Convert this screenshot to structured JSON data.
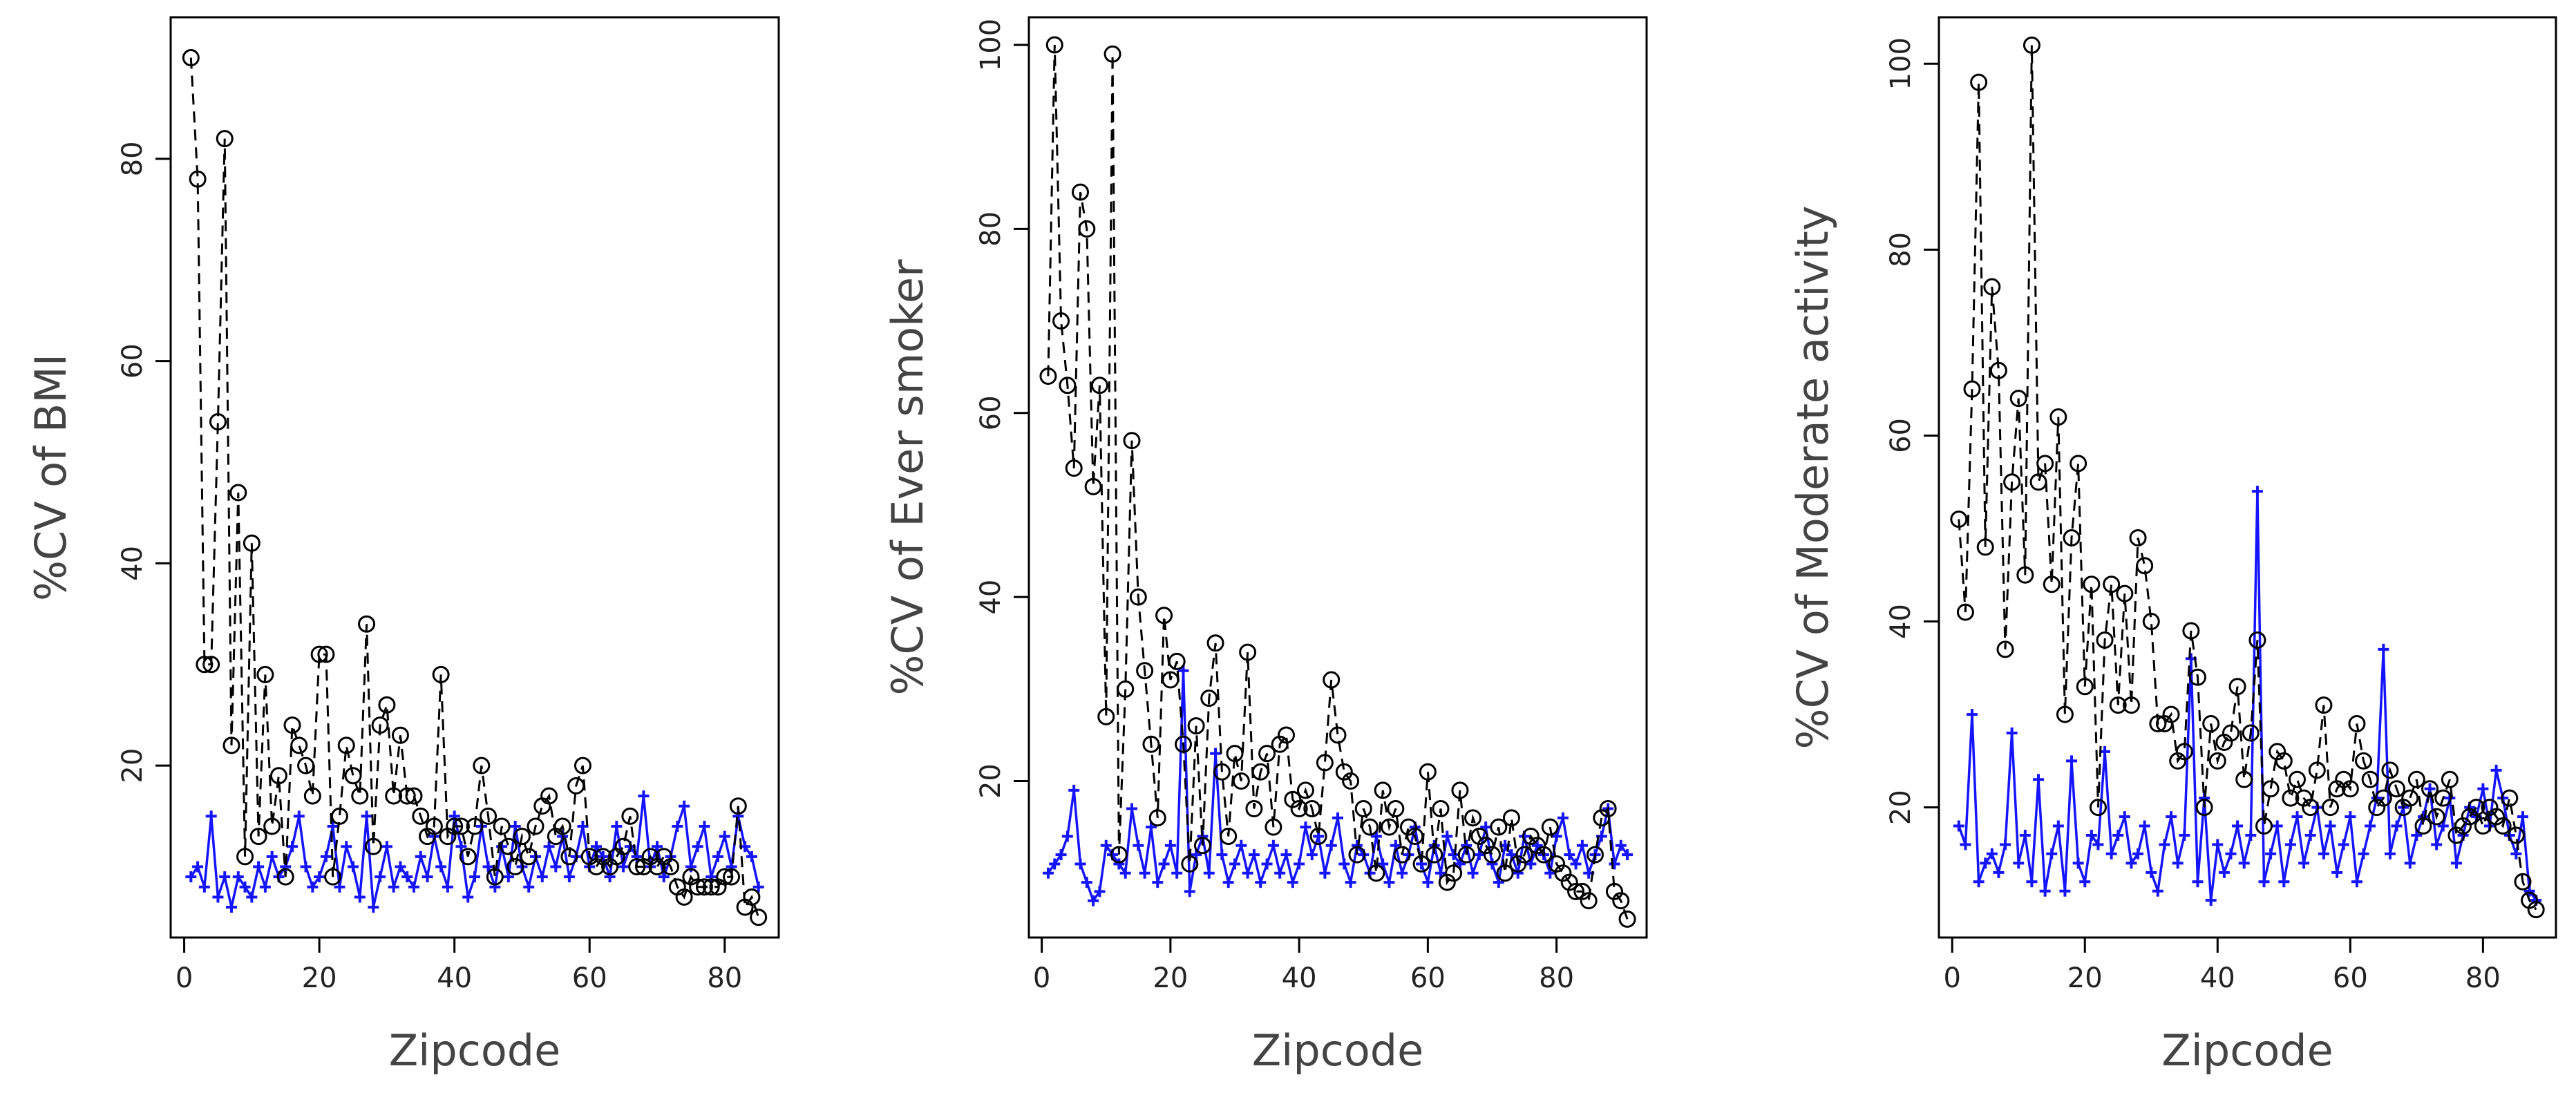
{
  "chart_data": [
    {
      "type": "line",
      "title": "",
      "xlabel": "Zipcode",
      "ylabel": "%CV of BMI",
      "xlim": [
        -2,
        88
      ],
      "ylim": [
        3,
        94
      ],
      "xticks": [
        0,
        20,
        40,
        60,
        80
      ],
      "yticks": [
        20,
        40,
        60,
        80
      ],
      "series": [
        {
          "name": "circles (black, dashed)",
          "marker": "circle",
          "color": "#000000",
          "x": [
            1,
            2,
            3,
            4,
            5,
            6,
            7,
            8,
            9,
            10,
            11,
            12,
            13,
            14,
            15,
            16,
            17,
            18,
            19,
            20,
            21,
            22,
            23,
            24,
            25,
            26,
            27,
            28,
            29,
            30,
            31,
            32,
            33,
            34,
            35,
            36,
            37,
            38,
            39,
            40,
            41,
            42,
            43,
            44,
            45,
            46,
            47,
            48,
            49,
            50,
            51,
            52,
            53,
            54,
            55,
            56,
            57,
            58,
            59,
            60,
            61,
            62,
            63,
            64,
            65,
            66,
            67,
            68,
            69,
            70,
            71,
            72,
            73,
            74,
            75,
            76,
            77,
            78,
            79,
            80,
            81,
            82,
            83,
            84,
            85
          ],
          "y": [
            90,
            78,
            30,
            30,
            54,
            82,
            22,
            47,
            11,
            42,
            13,
            29,
            14,
            19,
            9,
            24,
            22,
            20,
            17,
            31,
            31,
            9,
            15,
            22,
            19,
            17,
            34,
            12,
            24,
            26,
            17,
            23,
            17,
            17,
            15,
            13,
            14,
            29,
            13,
            14,
            14,
            11,
            14,
            20,
            15,
            9,
            14,
            12,
            10,
            13,
            11,
            14,
            16,
            17,
            13,
            14,
            11,
            18,
            20,
            11,
            10,
            11,
            10,
            11,
            12,
            15,
            10,
            10,
            11,
            10,
            11,
            10,
            8,
            7,
            9,
            8,
            8,
            8,
            8,
            9,
            9,
            16,
            6,
            7,
            5
          ]
        },
        {
          "name": "plus (blue, solid)",
          "marker": "plus",
          "color": "#1414ff",
          "x": [
            1,
            2,
            3,
            4,
            5,
            6,
            7,
            8,
            9,
            10,
            11,
            12,
            13,
            14,
            15,
            16,
            17,
            18,
            19,
            20,
            21,
            22,
            23,
            24,
            25,
            26,
            27,
            28,
            29,
            30,
            31,
            32,
            33,
            34,
            35,
            36,
            37,
            38,
            39,
            40,
            41,
            42,
            43,
            44,
            45,
            46,
            47,
            48,
            49,
            50,
            51,
            52,
            53,
            54,
            55,
            56,
            57,
            58,
            59,
            60,
            61,
            62,
            63,
            64,
            65,
            66,
            67,
            68,
            69,
            70,
            71,
            72,
            73,
            74,
            75,
            76,
            77,
            78,
            79,
            80,
            81,
            82,
            83,
            84,
            85
          ],
          "y": [
            9,
            10,
            8,
            15,
            7,
            9,
            6,
            9,
            8,
            7,
            10,
            8,
            11,
            9,
            10,
            12,
            15,
            10,
            8,
            9,
            11,
            14,
            8,
            12,
            10,
            7,
            15,
            6,
            9,
            12,
            8,
            10,
            9,
            8,
            11,
            9,
            13,
            10,
            8,
            15,
            12,
            7,
            9,
            14,
            10,
            8,
            12,
            9,
            14,
            10,
            8,
            11,
            9,
            12,
            10,
            13,
            9,
            11,
            14,
            10,
            12,
            11,
            9,
            14,
            10,
            12,
            11,
            17,
            10,
            12,
            9,
            11,
            14,
            16,
            10,
            12,
            14,
            9,
            11,
            13,
            10,
            15,
            12,
            11,
            8
          ]
        }
      ]
    },
    {
      "type": "line",
      "title": "",
      "xlabel": "Zipcode",
      "ylabel": "%CV of Ever smoker",
      "xlim": [
        -2,
        94
      ],
      "ylim": [
        3,
        103
      ],
      "xticks": [
        0,
        20,
        40,
        60,
        80
      ],
      "yticks": [
        20,
        40,
        60,
        80,
        100
      ],
      "series": [
        {
          "name": "circles (black, dashed)",
          "marker": "circle",
          "color": "#000000",
          "x": [
            1,
            2,
            3,
            4,
            5,
            6,
            7,
            8,
            9,
            10,
            11,
            12,
            13,
            14,
            15,
            16,
            17,
            18,
            19,
            20,
            21,
            22,
            23,
            24,
            25,
            26,
            27,
            28,
            29,
            30,
            31,
            32,
            33,
            34,
            35,
            36,
            37,
            38,
            39,
            40,
            41,
            42,
            43,
            44,
            45,
            46,
            47,
            48,
            49,
            50,
            51,
            52,
            53,
            54,
            55,
            56,
            57,
            58,
            59,
            60,
            61,
            62,
            63,
            64,
            65,
            66,
            67,
            68,
            69,
            70,
            71,
            72,
            73,
            74,
            75,
            76,
            77,
            78,
            79,
            80,
            81,
            82,
            83,
            84,
            85,
            86,
            87,
            88,
            89,
            90,
            91
          ],
          "y": [
            64,
            100,
            70,
            63,
            54,
            84,
            80,
            52,
            63,
            27,
            99,
            12,
            30,
            57,
            40,
            32,
            24,
            16,
            38,
            31,
            33,
            24,
            11,
            26,
            13,
            29,
            35,
            21,
            14,
            23,
            20,
            34,
            17,
            21,
            23,
            15,
            24,
            25,
            18,
            17,
            19,
            17,
            14,
            22,
            31,
            25,
            21,
            20,
            12,
            17,
            15,
            10,
            19,
            15,
            17,
            12,
            15,
            14,
            11,
            21,
            12,
            17,
            9,
            10,
            19,
            12,
            16,
            14,
            13,
            12,
            15,
            10,
            16,
            11,
            12,
            14,
            13,
            12,
            15,
            11,
            10,
            9,
            8,
            8,
            7,
            12,
            16,
            17,
            8,
            7,
            5
          ]
        },
        {
          "name": "plus (blue, solid)",
          "marker": "plus",
          "color": "#1414ff",
          "x": [
            1,
            2,
            3,
            4,
            5,
            6,
            7,
            8,
            9,
            10,
            11,
            12,
            13,
            14,
            15,
            16,
            17,
            18,
            19,
            20,
            21,
            22,
            23,
            24,
            25,
            26,
            27,
            28,
            29,
            30,
            31,
            32,
            33,
            34,
            35,
            36,
            37,
            38,
            39,
            40,
            41,
            42,
            43,
            44,
            45,
            46,
            47,
            48,
            49,
            50,
            51,
            52,
            53,
            54,
            55,
            56,
            57,
            58,
            59,
            60,
            61,
            62,
            63,
            64,
            65,
            66,
            67,
            68,
            69,
            70,
            71,
            72,
            73,
            74,
            75,
            76,
            77,
            78,
            79,
            80,
            81,
            82,
            83,
            84,
            85,
            86,
            87,
            88,
            89,
            90,
            91
          ],
          "y": [
            10,
            11,
            12,
            14,
            19,
            11,
            9,
            7,
            8,
            13,
            12,
            11,
            10,
            17,
            13,
            10,
            15,
            9,
            11,
            13,
            10,
            32,
            8,
            12,
            14,
            10,
            23,
            12,
            9,
            11,
            13,
            10,
            12,
            9,
            11,
            13,
            10,
            12,
            9,
            11,
            15,
            12,
            14,
            10,
            13,
            16,
            11,
            9,
            13,
            12,
            10,
            14,
            11,
            9,
            13,
            10,
            12,
            15,
            11,
            9,
            13,
            10,
            14,
            12,
            11,
            13,
            10,
            12,
            15,
            11,
            9,
            13,
            12,
            10,
            14,
            11,
            13,
            12,
            10,
            14,
            16,
            12,
            11,
            13,
            10,
            12,
            14,
            17,
            11,
            13,
            12
          ]
        }
      ]
    },
    {
      "type": "line",
      "title": "",
      "xlabel": "Zipcode",
      "ylabel": "%CV of Moderate activity",
      "xlim": [
        -2,
        91
      ],
      "ylim": [
        6,
        105
      ],
      "xticks": [
        0,
        20,
        40,
        60,
        80
      ],
      "yticks": [
        20,
        40,
        60,
        80,
        100
      ],
      "series": [
        {
          "name": "circles (black, dashed)",
          "marker": "circle",
          "color": "#000000",
          "x": [
            1,
            2,
            3,
            4,
            5,
            6,
            7,
            8,
            9,
            10,
            11,
            12,
            13,
            14,
            15,
            16,
            17,
            18,
            19,
            20,
            21,
            22,
            23,
            24,
            25,
            26,
            27,
            28,
            29,
            30,
            31,
            32,
            33,
            34,
            35,
            36,
            37,
            38,
            39,
            40,
            41,
            42,
            43,
            44,
            45,
            46,
            47,
            48,
            49,
            50,
            51,
            52,
            53,
            54,
            55,
            56,
            57,
            58,
            59,
            60,
            61,
            62,
            63,
            64,
            65,
            66,
            67,
            68,
            69,
            70,
            71,
            72,
            73,
            74,
            75,
            76,
            77,
            78,
            79,
            80,
            81,
            82,
            83,
            84,
            85,
            86,
            87,
            88
          ],
          "y": [
            51,
            41,
            65,
            98,
            48,
            76,
            67,
            37,
            55,
            64,
            45,
            102,
            55,
            57,
            44,
            62,
            30,
            49,
            57,
            33,
            44,
            20,
            38,
            44,
            31,
            43,
            31,
            49,
            46,
            40,
            29,
            29,
            30,
            25,
            26,
            39,
            34,
            20,
            29,
            25,
            27,
            28,
            33,
            23,
            28,
            38,
            18,
            22,
            26,
            25,
            21,
            23,
            21,
            20,
            24,
            31,
            20,
            22,
            23,
            22,
            29,
            25,
            23,
            20,
            21,
            24,
            22,
            20,
            21,
            23,
            18,
            22,
            19,
            21,
            23,
            17,
            18,
            19,
            20,
            18,
            20,
            19,
            18,
            21,
            17,
            12,
            10,
            9
          ]
        },
        {
          "name": "plus (blue, solid)",
          "marker": "plus",
          "color": "#1414ff",
          "x": [
            1,
            2,
            3,
            4,
            5,
            6,
            7,
            8,
            9,
            10,
            11,
            12,
            13,
            14,
            15,
            16,
            17,
            18,
            19,
            20,
            21,
            22,
            23,
            24,
            25,
            26,
            27,
            28,
            29,
            30,
            31,
            32,
            33,
            34,
            35,
            36,
            37,
            38,
            39,
            40,
            41,
            42,
            43,
            44,
            45,
            46,
            47,
            48,
            49,
            50,
            51,
            52,
            53,
            54,
            55,
            56,
            57,
            58,
            59,
            60,
            61,
            62,
            63,
            64,
            65,
            66,
            67,
            68,
            69,
            70,
            71,
            72,
            73,
            74,
            75,
            76,
            77,
            78,
            79,
            80,
            81,
            82,
            83,
            84,
            85,
            86,
            87,
            88
          ],
          "y": [
            18,
            16,
            30,
            12,
            14,
            15,
            13,
            16,
            28,
            14,
            17,
            12,
            23,
            11,
            15,
            18,
            11,
            25,
            14,
            12,
            17,
            16,
            26,
            15,
            17,
            19,
            14,
            15,
            18,
            13,
            11,
            16,
            19,
            14,
            17,
            36,
            12,
            21,
            10,
            16,
            13,
            15,
            18,
            14,
            17,
            54,
            12,
            15,
            18,
            12,
            16,
            19,
            14,
            17,
            20,
            15,
            18,
            13,
            16,
            19,
            12,
            15,
            18,
            21,
            37,
            15,
            18,
            20,
            14,
            17,
            19,
            22,
            16,
            18,
            21,
            14,
            17,
            20,
            19,
            22,
            18,
            24,
            21,
            17,
            15,
            19,
            11,
            10
          ]
        }
      ]
    }
  ]
}
